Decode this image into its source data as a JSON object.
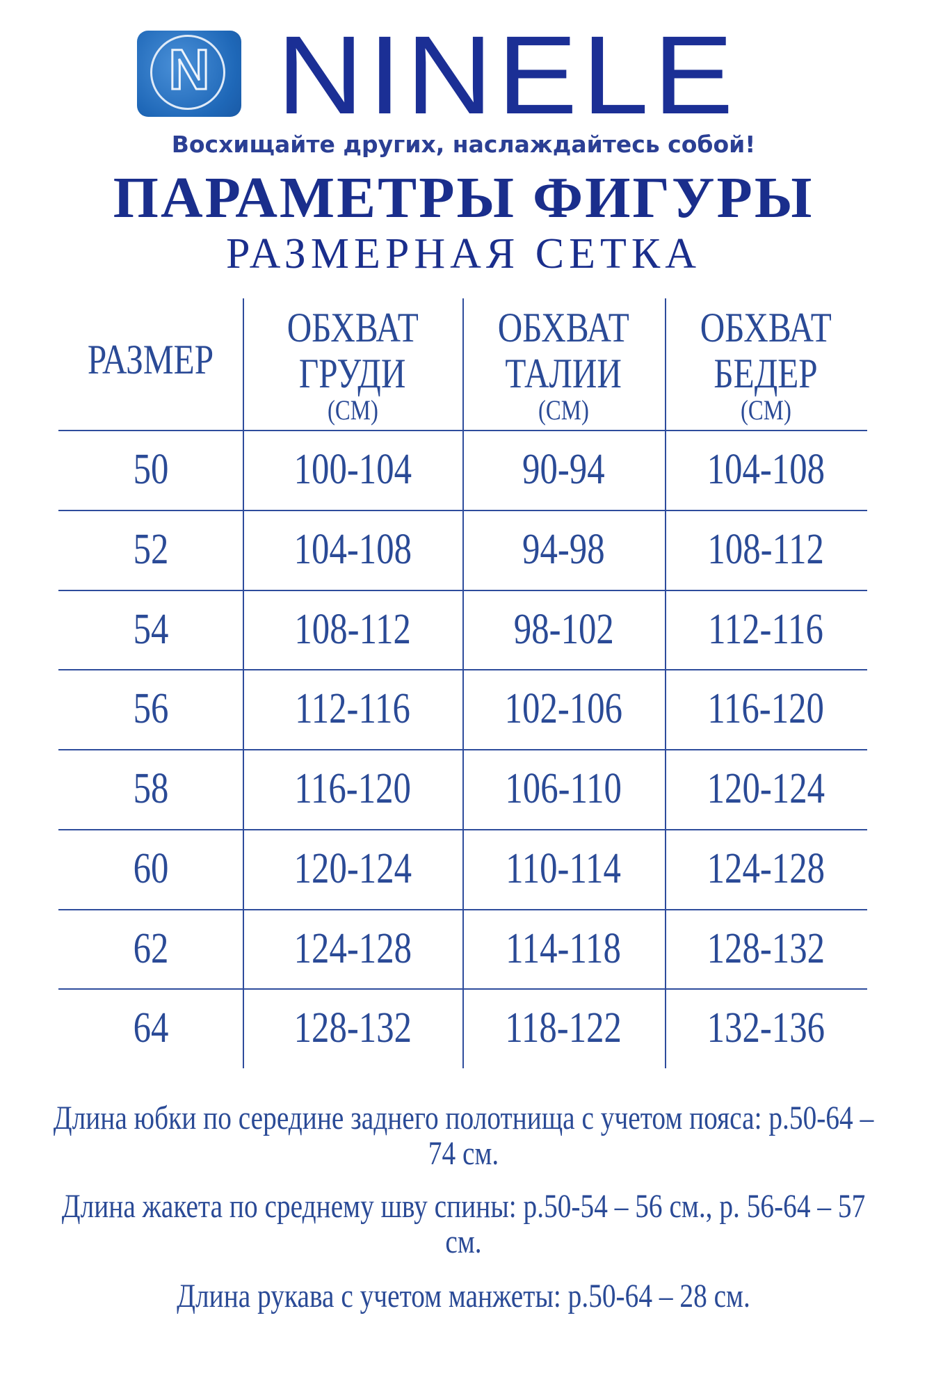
{
  "header": {
    "brand": "NINELE",
    "logo_letter": "N",
    "tagline": "Восхищайте других, наслаждайтесь собой!",
    "title": "ПАРАМЕТРЫ ФИГУРЫ",
    "subtitle": "РАЗМЕРНАЯ СЕТКА"
  },
  "table": {
    "columns": [
      {
        "line1": "РАЗМЕР",
        "line2": "",
        "unit": ""
      },
      {
        "line1": "ОБХВАТ",
        "line2": "ГРУДИ",
        "unit": "(СМ)"
      },
      {
        "line1": "ОБХВАТ",
        "line2": "ТАЛИИ",
        "unit": "(СМ)"
      },
      {
        "line1": "ОБХВАТ",
        "line2": "БЕДЕР",
        "unit": "(СМ)"
      }
    ],
    "rows": [
      [
        "50",
        "100-104",
        "90-94",
        "104-108"
      ],
      [
        "52",
        "104-108",
        "94-98",
        "108-112"
      ],
      [
        "54",
        "108-112",
        "98-102",
        "112-116"
      ],
      [
        "56",
        "112-116",
        "102-106",
        "116-120"
      ],
      [
        "58",
        "116-120",
        "106-110",
        "120-124"
      ],
      [
        "60",
        "120-124",
        "110-114",
        "124-128"
      ],
      [
        "62",
        "124-128",
        "114-118",
        "128-132"
      ],
      [
        "64",
        "128-132",
        "118-122",
        "132-136"
      ]
    ]
  },
  "notes": [
    "Длина юбки по середине заднего полотнища с учетом пояса: р.50-64 – 74 см.",
    "Длина жакета по среднему шву спины: р.50-54 – 56 см., р. 56-64 – 57 см.",
    "Длина рукава с учетом манжеты: р.50-64 – 28 см."
  ],
  "colors": {
    "brand": "#1b2f95",
    "text": "#2a4a96",
    "logo_bg": "#1f68b8"
  }
}
